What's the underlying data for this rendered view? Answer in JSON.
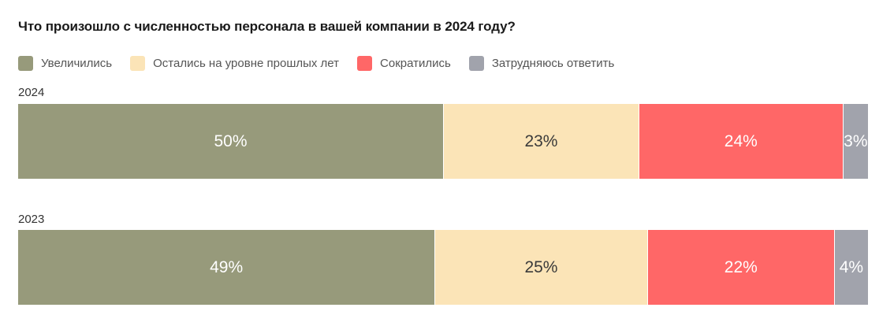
{
  "chart_data": {
    "type": "bar",
    "orientation": "horizontal",
    "stacked": true,
    "percent": true,
    "title": "Что произошло с численностью персонала в вашей компании в 2024 году?",
    "categories": [
      "2024",
      "2023"
    ],
    "series": [
      {
        "name": "Увеличились",
        "color": "#979a7b",
        "text_color": "#ffffff",
        "values": [
          50,
          49
        ],
        "labels": [
          "50%",
          "49%"
        ]
      },
      {
        "name": "Остались на уровне прошлых лет",
        "color": "#fbe4b7",
        "text_color": "#3a3a3a",
        "values": [
          23,
          25
        ],
        "labels": [
          "23%",
          "25%"
        ]
      },
      {
        "name": "Сократились",
        "color": "#ff6767",
        "text_color": "#ffffff",
        "values": [
          24,
          22
        ],
        "labels": [
          "24%",
          "22%"
        ]
      },
      {
        "name": "Затрудняюсь ответить",
        "color": "#a1a3ac",
        "text_color": "#ffffff",
        "values": [
          3,
          4
        ],
        "labels": [
          "3%",
          "4%"
        ]
      }
    ],
    "legend_position": "top-left",
    "grid": false
  }
}
